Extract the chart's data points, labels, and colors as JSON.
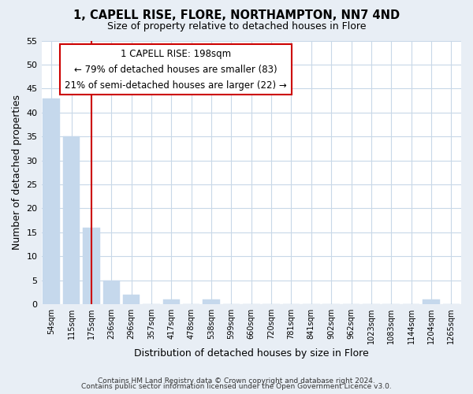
{
  "title": "1, CAPELL RISE, FLORE, NORTHAMPTON, NN7 4ND",
  "subtitle": "Size of property relative to detached houses in Flore",
  "xlabel": "Distribution of detached houses by size in Flore",
  "ylabel": "Number of detached properties",
  "bar_labels": [
    "54sqm",
    "115sqm",
    "175sqm",
    "236sqm",
    "296sqm",
    "357sqm",
    "417sqm",
    "478sqm",
    "538sqm",
    "599sqm",
    "660sqm",
    "720sqm",
    "781sqm",
    "841sqm",
    "902sqm",
    "962sqm",
    "1023sqm",
    "1083sqm",
    "1144sqm",
    "1204sqm",
    "1265sqm"
  ],
  "bar_heights": [
    43,
    35,
    16,
    5,
    2,
    0,
    1,
    0,
    1,
    0,
    0,
    0,
    0,
    0,
    0,
    0,
    0,
    0,
    0,
    1,
    0
  ],
  "bar_color": "#c5d8ec",
  "vline_x": 2,
  "vline_color": "#cc0000",
  "ylim": [
    0,
    55
  ],
  "yticks": [
    0,
    5,
    10,
    15,
    20,
    25,
    30,
    35,
    40,
    45,
    50,
    55
  ],
  "ann_line1": "1 CAPELL RISE: 198sqm",
  "ann_line2": "← 79% of detached houses are smaller (83)",
  "ann_line3": "21% of semi-detached houses are larger (22) →",
  "footer_line1": "Contains HM Land Registry data © Crown copyright and database right 2024.",
  "footer_line2": "Contains public sector information licensed under the Open Government Licence v3.0.",
  "bg_color": "#e8eef5",
  "plot_bg_color": "#ffffff",
  "grid_color": "#c8d8e8"
}
